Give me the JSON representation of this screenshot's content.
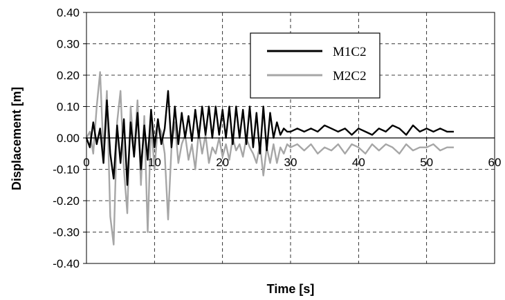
{
  "chart_data": {
    "type": "line",
    "title": "",
    "xlabel": "Time [s]",
    "ylabel": "Displacement [m]",
    "xlim": [
      0,
      60
    ],
    "ylim": [
      -0.4,
      0.4
    ],
    "x_ticks": [
      "0",
      "10",
      "20",
      "30",
      "40",
      "50",
      "60"
    ],
    "y_ticks": [
      "0.40",
      "0.30",
      "0.20",
      "0.10",
      "0.00",
      "-0.10",
      "-0.20",
      "-0.30",
      "-0.40"
    ],
    "grid": true,
    "legend_position": "top-right",
    "colors": {
      "M1C2": "#000000",
      "M2C2": "#a6a6a6",
      "axes": "#000000",
      "grid": "#000000"
    },
    "series": [
      {
        "name": "M1C2",
        "x": [
          0,
          0.5,
          1,
          1.5,
          2,
          2.5,
          3,
          3.5,
          4,
          4.5,
          5,
          5.5,
          6,
          6.5,
          7,
          7.5,
          8,
          8.5,
          9,
          9.5,
          10,
          10.5,
          11,
          11.5,
          12,
          12.5,
          13,
          13.5,
          14,
          14.5,
          15,
          15.5,
          16,
          16.5,
          17,
          17.5,
          18,
          18.5,
          19,
          19.5,
          20,
          20.5,
          21,
          21.5,
          22,
          22.5,
          23,
          23.5,
          24,
          24.5,
          25,
          25.5,
          26,
          26.5,
          27,
          27.5,
          28,
          28.5,
          29,
          29.5,
          30,
          31,
          32,
          33,
          34,
          35,
          36,
          37,
          38,
          39,
          40,
          41,
          42,
          43,
          44,
          45,
          46,
          47,
          48,
          49,
          50,
          51,
          52,
          53,
          54
        ],
        "values": [
          0.0,
          -0.03,
          0.05,
          -0.02,
          0.03,
          -0.08,
          0.12,
          -0.05,
          -0.13,
          0.04,
          -0.08,
          0.06,
          -0.15,
          0.05,
          -0.06,
          0.08,
          -0.1,
          0.04,
          -0.07,
          0.09,
          -0.03,
          0.06,
          -0.02,
          0.03,
          0.15,
          -0.03,
          0.1,
          -0.02,
          0.08,
          0.0,
          0.07,
          -0.01,
          0.09,
          0.0,
          0.1,
          0.01,
          0.1,
          0.0,
          0.1,
          0.01,
          0.09,
          0.0,
          0.1,
          -0.02,
          0.1,
          0.0,
          0.09,
          -0.02,
          0.1,
          -0.03,
          0.08,
          -0.05,
          0.1,
          -0.04,
          0.08,
          0.0,
          0.05,
          0.01,
          0.03,
          0.02,
          0.02,
          0.03,
          0.02,
          0.03,
          0.02,
          0.04,
          0.03,
          0.02,
          0.03,
          0.01,
          0.03,
          0.02,
          0.01,
          0.03,
          0.02,
          0.04,
          0.03,
          0.01,
          0.04,
          0.02,
          0.03,
          0.02,
          0.03,
          0.02,
          0.02
        ]
      },
      {
        "name": "M2C2",
        "x": [
          0,
          0.5,
          1,
          1.5,
          2,
          2.5,
          3,
          3.5,
          4,
          4.5,
          5,
          5.5,
          6,
          6.5,
          7,
          7.5,
          8,
          8.5,
          9,
          9.5,
          10,
          10.5,
          11,
          11.5,
          12,
          12.5,
          13,
          13.5,
          14,
          14.5,
          15,
          15.5,
          16,
          16.5,
          17,
          17.5,
          18,
          18.5,
          19,
          19.5,
          20,
          20.5,
          21,
          21.5,
          22,
          22.5,
          23,
          23.5,
          24,
          24.5,
          25,
          25.5,
          26,
          26.5,
          27,
          27.5,
          28,
          28.5,
          29,
          29.5,
          30,
          31,
          32,
          33,
          34,
          35,
          36,
          37,
          38,
          39,
          40,
          41,
          42,
          43,
          44,
          45,
          46,
          47,
          48,
          49,
          50,
          51,
          52,
          53,
          54
        ],
        "values": [
          0.0,
          0.02,
          -0.05,
          0.1,
          0.21,
          -0.05,
          0.15,
          -0.25,
          -0.34,
          0.05,
          0.15,
          -0.1,
          -0.24,
          0.1,
          -0.05,
          0.12,
          -0.15,
          0.07,
          -0.3,
          0.05,
          -0.1,
          0.04,
          0.02,
          -0.05,
          -0.26,
          -0.03,
          0.05,
          -0.08,
          -0.02,
          0.01,
          -0.07,
          -0.02,
          -0.1,
          0.02,
          -0.05,
          0.01,
          -0.08,
          -0.03,
          -0.05,
          0.0,
          -0.06,
          -0.02,
          -0.07,
          0.0,
          -0.04,
          -0.02,
          -0.06,
          0.0,
          -0.03,
          -0.05,
          -0.08,
          -0.02,
          -0.12,
          -0.03,
          -0.08,
          -0.02,
          -0.08,
          -0.03,
          -0.05,
          -0.02,
          -0.03,
          -0.02,
          -0.04,
          -0.02,
          -0.05,
          -0.03,
          -0.04,
          -0.02,
          -0.05,
          -0.02,
          -0.03,
          -0.05,
          -0.02,
          -0.04,
          -0.02,
          -0.03,
          -0.05,
          -0.02,
          -0.04,
          -0.03,
          -0.03,
          -0.02,
          -0.04,
          -0.03,
          -0.03
        ]
      }
    ]
  }
}
